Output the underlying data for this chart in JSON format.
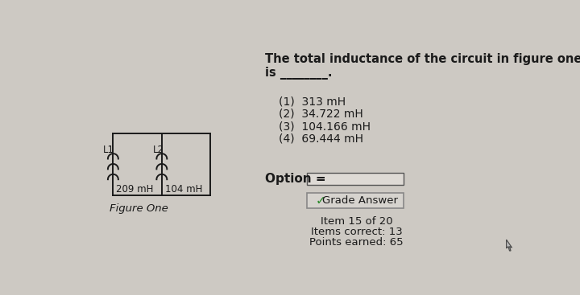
{
  "bg_color": "#cdc9c3",
  "title_line1": "The total inductance of the circuit in figure one",
  "title_line2": "is ________.",
  "options": [
    "(1)  313 mH",
    "(2)  34.722 mH",
    "(3)  104.166 mH",
    "(4)  69.444 mH"
  ],
  "option_label": "Option = ",
  "grade_button_text": " Grade Answer",
  "grade_check_color": "#2a8a2a",
  "footer_lines": [
    "Item 15 of 20",
    "Items correct: 13",
    "Points earned: 65"
  ],
  "figure_label": "Figure One",
  "inductor1_label": "L1",
  "inductor1_value": "209 mH",
  "inductor2_label": "L2",
  "inductor2_value": "104 mH",
  "wire_color": "#1a1a1a",
  "text_color": "#1a1a1a",
  "btn_face": "#d6d3ce",
  "btn_edge": "#888888",
  "input_face": "#dedad5",
  "input_edge": "#555555"
}
